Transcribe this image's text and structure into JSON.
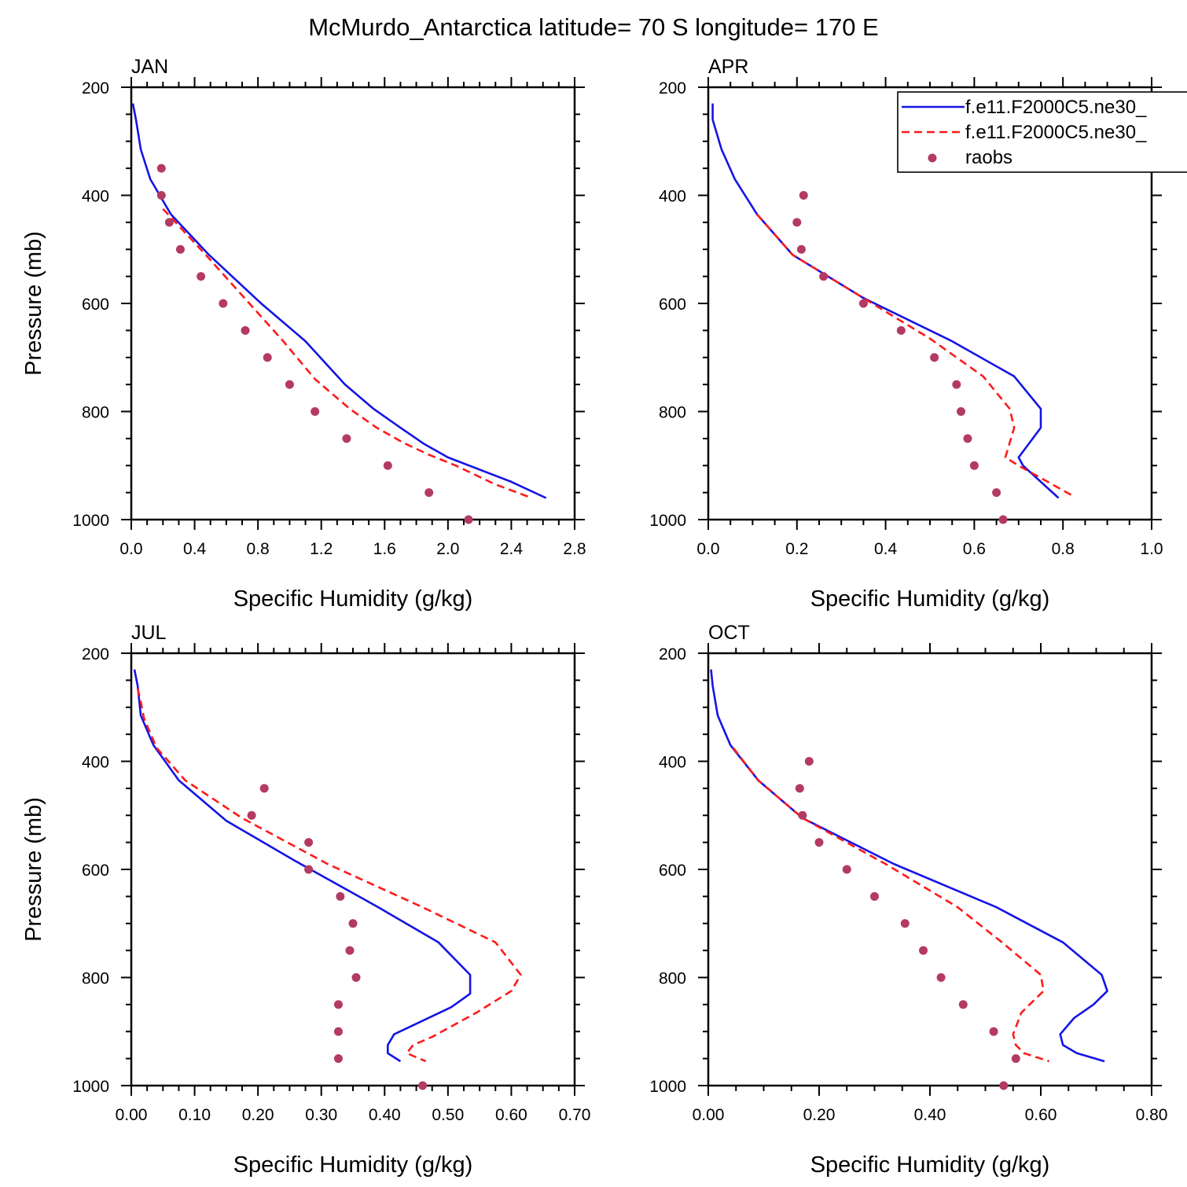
{
  "title": "McMurdo_Antarctica  latitude= 70 S longitude= 170 E",
  "legend": {
    "placement": "top-right of APR panel (clipped)",
    "entries": [
      {
        "label": "f.e11.F2000C5.ne30_",
        "style": "solid",
        "color": "#1414e6"
      },
      {
        "label": "f.e11.F2000C5.ne30_",
        "style": "dashed",
        "color": "#ff1a1a"
      },
      {
        "label": "raobs",
        "style": "dot",
        "color": "#b33a63"
      }
    ]
  },
  "colors": {
    "model_solid": "#1414e6",
    "model_dashed": "#ff1a1a",
    "raobs": "#b33a63",
    "axis": "#000000"
  },
  "chart_data": [
    {
      "type": "line",
      "panel_title": "JAN",
      "xlabel": "Specific Humidity (g/kg)",
      "ylabel": "Pressure (mb)",
      "xlim": [
        0,
        2.8
      ],
      "ylim": [
        1000,
        200
      ],
      "y_reversed": true,
      "xticks": [
        "0.0",
        "0.4",
        "0.8",
        "1.2",
        "1.6",
        "2.0",
        "2.4",
        "2.8"
      ],
      "xtick_values": [
        0,
        0.4,
        0.8,
        1.2,
        1.6,
        2.0,
        2.4,
        2.8
      ],
      "yticks": [
        "200",
        "400",
        "600",
        "800",
        "1000"
      ],
      "ytick_values": [
        200,
        400,
        600,
        800,
        1000
      ],
      "series": [
        {
          "kind": "solid",
          "x": [
            0.01,
            0.03,
            0.06,
            0.12,
            0.25,
            0.49,
            0.82,
            1.1,
            1.35,
            1.53,
            1.7,
            1.85,
            2.0,
            2.4,
            2.62
          ],
          "y": [
            230,
            260,
            315,
            370,
            435,
            510,
            600,
            670,
            750,
            795,
            830,
            860,
            885,
            930,
            960
          ]
        },
        {
          "kind": "dashed",
          "x": [
            0.2,
            0.47,
            0.96,
            1.16,
            1.38,
            1.55,
            1.72,
            1.88,
            2.05,
            2.3,
            2.53
          ],
          "y": [
            425,
            510,
            670,
            740,
            795,
            830,
            858,
            880,
            900,
            935,
            960
          ]
        },
        {
          "kind": "dots",
          "x": [
            0.19,
            0.19,
            0.24,
            0.31,
            0.44,
            0.58,
            0.72,
            0.86,
            1.0,
            1.16,
            1.36,
            1.62,
            1.88,
            2.13
          ],
          "y": [
            350,
            400,
            450,
            500,
            550,
            600,
            650,
            700,
            750,
            800,
            850,
            900,
            950,
            1000
          ]
        }
      ]
    },
    {
      "type": "line",
      "panel_title": "APR",
      "xlabel": "Specific Humidity (g/kg)",
      "ylabel": "",
      "xlim": [
        0,
        1.0
      ],
      "ylim": [
        1000,
        200
      ],
      "y_reversed": true,
      "xticks": [
        "0.0",
        "0.2",
        "0.4",
        "0.6",
        "0.8",
        "1.0"
      ],
      "xtick_values": [
        0,
        0.2,
        0.4,
        0.6,
        0.8,
        1.0
      ],
      "yticks": [
        "200",
        "400",
        "600",
        "800",
        "1000"
      ],
      "ytick_values": [
        200,
        400,
        600,
        800,
        1000
      ],
      "series": [
        {
          "kind": "solid",
          "x": [
            0.01,
            0.01,
            0.03,
            0.06,
            0.11,
            0.19,
            0.35,
            0.55,
            0.69,
            0.75,
            0.75,
            0.7,
            0.71,
            0.79
          ],
          "y": [
            230,
            260,
            315,
            370,
            435,
            510,
            590,
            670,
            735,
            795,
            830,
            885,
            900,
            960
          ]
        },
        {
          "kind": "dashed",
          "x": [
            0.11,
            0.19,
            0.33,
            0.5,
            0.62,
            0.68,
            0.69,
            0.67,
            0.7,
            0.82
          ],
          "y": [
            435,
            510,
            580,
            665,
            735,
            795,
            830,
            885,
            900,
            955
          ]
        },
        {
          "kind": "dots",
          "x": [
            0.215,
            0.2,
            0.21,
            0.26,
            0.35,
            0.435,
            0.51,
            0.56,
            0.57,
            0.585,
            0.6,
            0.65,
            0.665
          ],
          "y": [
            400,
            450,
            500,
            550,
            600,
            650,
            700,
            750,
            800,
            850,
            900,
            950,
            1000
          ]
        }
      ]
    },
    {
      "type": "line",
      "panel_title": "JUL",
      "xlabel": "Specific Humidity (g/kg)",
      "ylabel": "Pressure (mb)",
      "xlim": [
        0,
        0.7
      ],
      "ylim": [
        1000,
        200
      ],
      "y_reversed": true,
      "xticks": [
        "0.00",
        "0.10",
        "0.20",
        "0.30",
        "0.40",
        "0.50",
        "0.60",
        "0.70"
      ],
      "xtick_values": [
        0,
        0.1,
        0.2,
        0.3,
        0.4,
        0.5,
        0.6,
        0.7
      ],
      "yticks": [
        "200",
        "400",
        "600",
        "800",
        "1000"
      ],
      "ytick_values": [
        200,
        400,
        600,
        800,
        1000
      ],
      "series": [
        {
          "kind": "solid",
          "x": [
            0.005,
            0.01,
            0.015,
            0.035,
            0.075,
            0.15,
            0.26,
            0.39,
            0.485,
            0.535,
            0.535,
            0.505,
            0.415,
            0.405,
            0.405,
            0.425
          ],
          "y": [
            230,
            260,
            315,
            370,
            435,
            510,
            585,
            670,
            735,
            795,
            830,
            855,
            905,
            925,
            940,
            955
          ]
        },
        {
          "kind": "dashed",
          "x": [
            0.01,
            0.015,
            0.02,
            0.04,
            0.085,
            0.175,
            0.31,
            0.46,
            0.575,
            0.615,
            0.6,
            0.545,
            0.475,
            0.445,
            0.435,
            0.465
          ],
          "y": [
            265,
            290,
            320,
            375,
            435,
            505,
            590,
            670,
            735,
            795,
            825,
            865,
            910,
            925,
            940,
            955
          ]
        },
        {
          "kind": "dots",
          "x": [
            0.21,
            0.19,
            0.28,
            0.28,
            0.33,
            0.35,
            0.345,
            0.355,
            0.327,
            0.327,
            0.327,
            0.46
          ],
          "y": [
            450,
            500,
            550,
            600,
            650,
            700,
            750,
            800,
            850,
            900,
            950,
            1000
          ]
        }
      ]
    },
    {
      "type": "line",
      "panel_title": "OCT",
      "xlabel": "Specific Humidity (g/kg)",
      "ylabel": "",
      "xlim": [
        0,
        0.8
      ],
      "ylim": [
        1000,
        200
      ],
      "y_reversed": true,
      "xticks": [
        "0.00",
        "0.20",
        "0.40",
        "0.60",
        "0.80"
      ],
      "xtick_values": [
        0,
        0.2,
        0.4,
        0.6,
        0.8
      ],
      "yticks": [
        "200",
        "400",
        "600",
        "800",
        "1000"
      ],
      "ytick_values": [
        200,
        400,
        600,
        800,
        1000
      ],
      "series": [
        {
          "kind": "solid",
          "x": [
            0.005,
            0.008,
            0.017,
            0.04,
            0.09,
            0.17,
            0.335,
            0.52,
            0.64,
            0.71,
            0.72,
            0.695,
            0.66,
            0.635,
            0.64,
            0.665,
            0.715
          ],
          "y": [
            230,
            260,
            315,
            370,
            435,
            505,
            590,
            670,
            735,
            795,
            825,
            850,
            875,
            905,
            925,
            940,
            955
          ]
        },
        {
          "kind": "dashed",
          "x": [
            0.045,
            0.09,
            0.17,
            0.32,
            0.45,
            0.53,
            0.6,
            0.605,
            0.565,
            0.55,
            0.555,
            0.57,
            0.615
          ],
          "y": [
            375,
            435,
            505,
            590,
            670,
            735,
            795,
            825,
            865,
            905,
            925,
            940,
            955
          ]
        },
        {
          "kind": "dots",
          "x": [
            0.182,
            0.165,
            0.17,
            0.2,
            0.25,
            0.3,
            0.355,
            0.388,
            0.42,
            0.46,
            0.515,
            0.555,
            0.533
          ],
          "y": [
            400,
            450,
            500,
            550,
            600,
            650,
            700,
            750,
            800,
            850,
            900,
            950,
            1000
          ]
        }
      ]
    }
  ]
}
